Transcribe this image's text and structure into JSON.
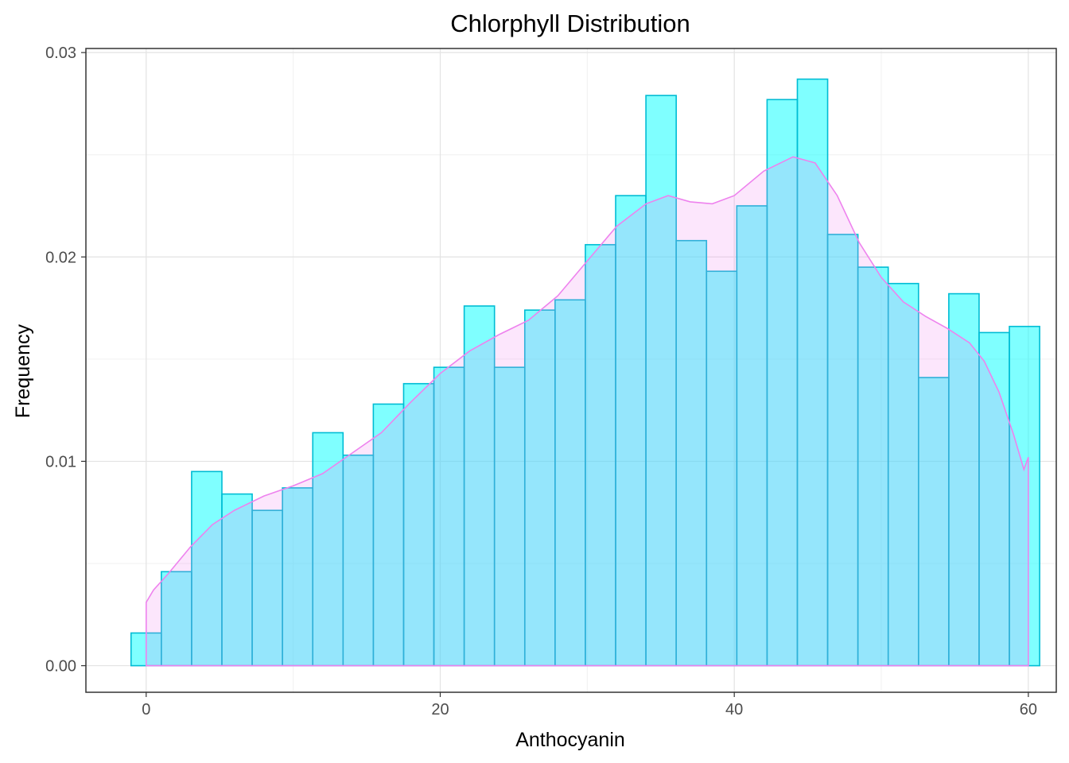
{
  "chart_data": {
    "type": "bar",
    "title": "Chlorphyll Distribution",
    "xlabel": "Anthocyanin",
    "ylabel": "Frequency",
    "xlim": [
      -4.1,
      61.9
    ],
    "ylim": [
      -0.0013,
      0.0302
    ],
    "x_ticks": [
      0,
      20,
      40,
      60
    ],
    "x_tick_labels": [
      "0",
      "20",
      "40",
      "60"
    ],
    "y_ticks": [
      0.0,
      0.01,
      0.02,
      0.03
    ],
    "y_tick_labels": [
      "0.00",
      "0.01",
      "0.02",
      "0.03"
    ],
    "grid": true,
    "histogram": {
      "bin_edges": [
        -1.03,
        1.03,
        3.09,
        5.15,
        7.21,
        9.27,
        11.33,
        13.39,
        15.45,
        17.51,
        19.57,
        21.63,
        23.69,
        25.75,
        27.81,
        29.87,
        31.93,
        33.99,
        36.05,
        38.11,
        40.17,
        42.23,
        44.29,
        46.35,
        48.41,
        50.47,
        52.53,
        54.59,
        56.65,
        58.71,
        60.77
      ],
      "values": [
        0.0016,
        0.0046,
        0.0095,
        0.0084,
        0.0076,
        0.0087,
        0.0114,
        0.0103,
        0.0128,
        0.0138,
        0.0146,
        0.0176,
        0.0146,
        0.0174,
        0.0179,
        0.0206,
        0.023,
        0.0279,
        0.0208,
        0.0193,
        0.0225,
        0.0277,
        0.0287,
        0.0211,
        0.0195,
        0.0187,
        0.0141,
        0.0182,
        0.0163,
        0.0166
      ],
      "fill": "#00ffff",
      "stroke": "#00bcd4"
    },
    "density": {
      "x": [
        0,
        0.5,
        1.5,
        3,
        4.5,
        6,
        8,
        10,
        12,
        14,
        16,
        18,
        20,
        22,
        24,
        26,
        28,
        30,
        32,
        34,
        35.5,
        37,
        38.5,
        40,
        42,
        44,
        45.5,
        47,
        48.5,
        50,
        51.5,
        53,
        54.5,
        56,
        57,
        58,
        59,
        59.7,
        60
      ],
      "y": [
        0.0031,
        0.0037,
        0.0045,
        0.0058,
        0.0069,
        0.0076,
        0.0083,
        0.0088,
        0.0094,
        0.0104,
        0.0114,
        0.0129,
        0.0143,
        0.0154,
        0.0162,
        0.0169,
        0.0181,
        0.0198,
        0.0215,
        0.0226,
        0.023,
        0.0227,
        0.0226,
        0.023,
        0.0242,
        0.0249,
        0.0246,
        0.023,
        0.0207,
        0.019,
        0.0178,
        0.0171,
        0.0165,
        0.0158,
        0.0149,
        0.0134,
        0.0113,
        0.0096,
        0.0102
      ],
      "fill": "#ee82ee",
      "stroke": "#ee82ee"
    }
  }
}
